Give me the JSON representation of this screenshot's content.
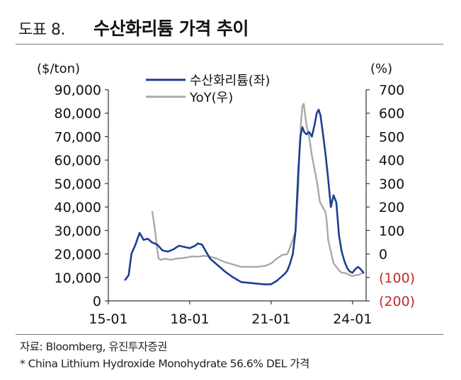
{
  "header": {
    "figure_label": "도표 8.",
    "title": "수산화리튬 가격 추이"
  },
  "footer": {
    "source": "자료: Bloomberg, 유진투자증권",
    "note": "* China Lithium Hydroxide Monohydrate 56.6% DEL 가격"
  },
  "colors": {
    "primary_series": "#1b3f94",
    "secondary_series": "#a9a9a9",
    "negative_tick": "#c0292b",
    "axis": "#333333"
  },
  "chart_data": {
    "type": "line",
    "title": "수산화리튬 가격 추이",
    "ylabel_left": "($/ton)",
    "ylabel_right": "(%)",
    "x_ticks": [
      {
        "label": "15-01",
        "value": 2015.0
      },
      {
        "label": "18-01",
        "value": 2018.0
      },
      {
        "label": "21-01",
        "value": 2021.0
      },
      {
        "label": "24-01",
        "value": 2024.0
      }
    ],
    "xlim": [
      2015.0,
      2024.5
    ],
    "ylim_left": [
      0,
      90000
    ],
    "ylim_right": [
      -200,
      700
    ],
    "y_ticks_left": [
      "0",
      "10,000",
      "20,000",
      "30,000",
      "40,000",
      "50,000",
      "60,000",
      "70,000",
      "80,000",
      "90,000"
    ],
    "y_ticks_left_values": [
      0,
      10000,
      20000,
      30000,
      40000,
      50000,
      60000,
      70000,
      80000,
      90000
    ],
    "y_ticks_right": [
      "(200)",
      "(100)",
      "0",
      "100",
      "200",
      "300",
      "400",
      "500",
      "600",
      "700"
    ],
    "y_ticks_right_values": [
      -200,
      -100,
      0,
      100,
      200,
      300,
      400,
      500,
      600,
      700
    ],
    "legend_position": "top-left",
    "series": [
      {
        "name": "수산화리튬(좌)",
        "axis": "left",
        "color": "#1b3f94",
        "x": [
          2015.62,
          2015.75,
          2015.85,
          2016.0,
          2016.15,
          2016.3,
          2016.45,
          2016.6,
          2016.8,
          2017.0,
          2017.2,
          2017.4,
          2017.6,
          2017.8,
          2018.0,
          2018.2,
          2018.3,
          2018.45,
          2018.6,
          2018.75,
          2019.0,
          2019.3,
          2019.6,
          2019.9,
          2020.2,
          2020.5,
          2020.8,
          2021.0,
          2021.2,
          2021.35,
          2021.5,
          2021.6,
          2021.7,
          2021.8,
          2021.9,
          2022.0,
          2022.08,
          2022.15,
          2022.22,
          2022.3,
          2022.4,
          2022.5,
          2022.6,
          2022.68,
          2022.75,
          2022.82,
          2022.9,
          2023.0,
          2023.1,
          2023.2,
          2023.3,
          2023.4,
          2023.5,
          2023.6,
          2023.7,
          2023.8,
          2023.9,
          2024.0,
          2024.1,
          2024.2,
          2024.3,
          2024.4
        ],
        "y": [
          9000,
          11000,
          20000,
          24000,
          29000,
          26000,
          26500,
          25000,
          24000,
          21500,
          21000,
          22000,
          23500,
          23000,
          22500,
          23500,
          24500,
          24000,
          21000,
          18000,
          15500,
          12500,
          10000,
          8000,
          7700,
          7300,
          7000,
          7100,
          8500,
          10000,
          11500,
          13000,
          16000,
          20000,
          30000,
          55000,
          70000,
          74000,
          72000,
          71000,
          72000,
          70000,
          75000,
          80000,
          81500,
          79000,
          72000,
          63000,
          52000,
          40000,
          45000,
          42000,
          28000,
          21000,
          17000,
          14000,
          12500,
          12000,
          13500,
          14500,
          13500,
          12000
        ]
      },
      {
        "name": "YoY(우)",
        "axis": "right",
        "color": "#a9a9a9",
        "x": [
          2016.62,
          2016.7,
          2016.78,
          2016.85,
          2016.95,
          2017.1,
          2017.3,
          2017.5,
          2017.7,
          2017.9,
          2018.1,
          2018.3,
          2018.5,
          2018.7,
          2019.0,
          2019.3,
          2019.6,
          2019.9,
          2020.2,
          2020.5,
          2020.8,
          2021.0,
          2021.2,
          2021.4,
          2021.6,
          2021.7,
          2021.8,
          2021.9,
          2022.0,
          2022.05,
          2022.1,
          2022.15,
          2022.2,
          2022.3,
          2022.4,
          2022.5,
          2022.6,
          2022.7,
          2022.8,
          2022.9,
          2023.0,
          2023.05,
          2023.1,
          2023.2,
          2023.3,
          2023.4,
          2023.5,
          2023.6,
          2023.7,
          2023.8,
          2023.9,
          2024.0,
          2024.1,
          2024.2,
          2024.3,
          2024.4
        ],
        "y": [
          180,
          120,
          40,
          -20,
          -25,
          -20,
          -25,
          -20,
          -18,
          -15,
          -10,
          -12,
          -8,
          -10,
          -20,
          -35,
          -45,
          -55,
          -55,
          -55,
          -50,
          -40,
          -20,
          -5,
          0,
          30,
          60,
          100,
          280,
          460,
          560,
          630,
          640,
          550,
          500,
          420,
          360,
          300,
          220,
          200,
          180,
          140,
          60,
          10,
          -40,
          -55,
          -70,
          -80,
          -80,
          -85,
          -90,
          -95,
          -90,
          -90,
          -85,
          -80
        ]
      }
    ]
  }
}
